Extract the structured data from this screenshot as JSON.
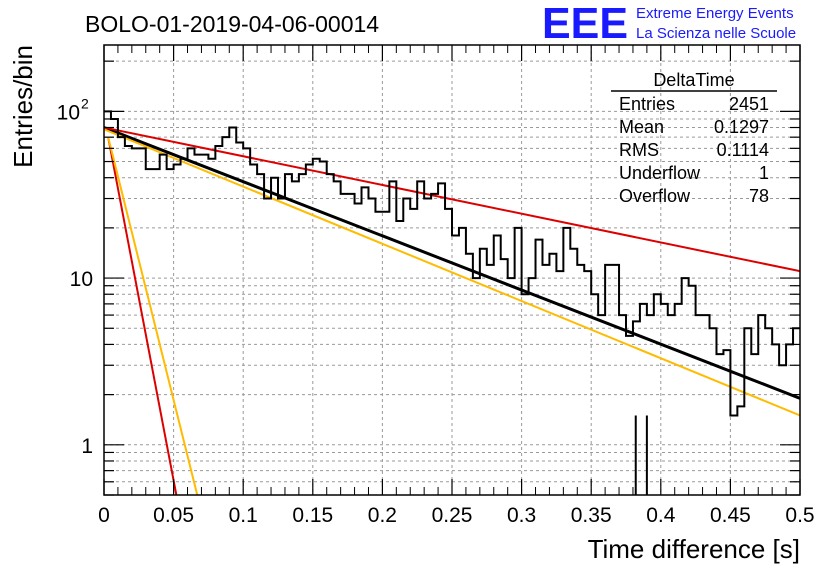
{
  "header": {
    "run_title": "BOLO-01-2019-04-06-00014",
    "logo_text": "EEE",
    "logo_line1": "Extreme Energy Events",
    "logo_line2": "La Scienza nelle Scuole"
  },
  "colors": {
    "logo": "#1a1aff",
    "histogram": "#000000",
    "fit_black": "#000000",
    "fit_red": "#dd0000",
    "fit_orange": "#ffbb00"
  },
  "stats_box": {
    "title": "DeltaTime",
    "rows": [
      {
        "label": "Entries",
        "value": "2451"
      },
      {
        "label": "Mean",
        "value": "0.1297"
      },
      {
        "label": "RMS",
        "value": "0.1114"
      },
      {
        "label": "Underflow",
        "value": "1"
      },
      {
        "label": "Overflow",
        "value": "78"
      }
    ]
  },
  "chart_data": {
    "type": "histogram",
    "xlabel": "Time difference [s]",
    "ylabel": "Entries/bin",
    "xlim": [
      0,
      0.5
    ],
    "ylim": [
      0.5,
      250
    ],
    "y_scale": "log",
    "grid": true,
    "x_tick_labels": [
      "0",
      "0.05",
      "0.1",
      "0.15",
      "0.2",
      "0.25",
      "0.3",
      "0.35",
      "0.4",
      "0.45",
      "0.5"
    ],
    "y_tick_labels": [
      "1",
      "10",
      "10^2"
    ],
    "bin_width": 0.005,
    "bin_start": 0,
    "counts": [
      100,
      90,
      70,
      62,
      60,
      60,
      45,
      45,
      55,
      45,
      48,
      52,
      60,
      55,
      55,
      52,
      62,
      70,
      80,
      65,
      60,
      48,
      42,
      30,
      40,
      30,
      42,
      38,
      42,
      48,
      52,
      50,
      42,
      38,
      32,
      32,
      28,
      35,
      30,
      25,
      25,
      38,
      22,
      30,
      26,
      38,
      30,
      32,
      37,
      26,
      18,
      20,
      14,
      10,
      15,
      12,
      18,
      13,
      10,
      20,
      8,
      10,
      17,
      12,
      14,
      11,
      20,
      15,
      12,
      11,
      8,
      6,
      12,
      12,
      6,
      4.5,
      5.5,
      7,
      6,
      8,
      7,
      6,
      7,
      10,
      9,
      6,
      6,
      5,
      3.5,
      3.7,
      1.5,
      1.7,
      5,
      3.5,
      6,
      5,
      4,
      3,
      4,
      5
    ],
    "overflow_markers": [
      0.382,
      0.39
    ],
    "fits": [
      {
        "color": "#000000",
        "x": [
          0.0,
          0.5
        ],
        "y": [
          80,
          1.9
        ]
      },
      {
        "color": "#dd0000",
        "x": [
          0.0,
          0.5
        ],
        "y": [
          80,
          11
        ]
      },
      {
        "color": "#ffbb00",
        "x": [
          0.0,
          0.5
        ],
        "y": [
          78,
          1.5
        ]
      },
      {
        "color": "#dd0000",
        "x": [
          0.003,
          0.052
        ],
        "y": [
          70,
          0.5
        ]
      },
      {
        "color": "#ffbb00",
        "x": [
          0.003,
          0.067
        ],
        "y": [
          70,
          0.5
        ]
      }
    ]
  }
}
